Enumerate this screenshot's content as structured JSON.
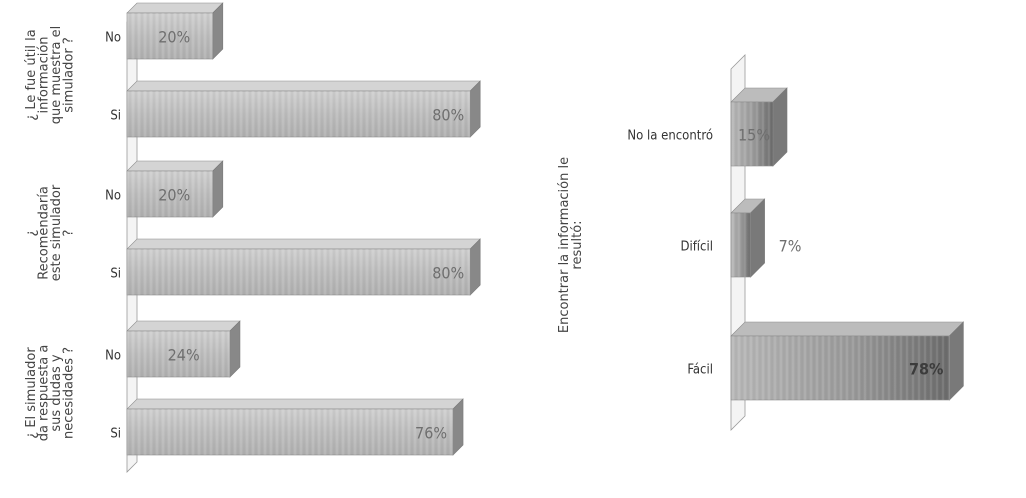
{
  "chart_data": [
    {
      "type": "bar",
      "orientation": "horizontal",
      "title": "",
      "xlabel": "",
      "ylabel": "",
      "xlim": [
        0,
        100
      ],
      "grid": false,
      "legend": "none",
      "bar_color": "#bdbdbd",
      "groups": [
        {
          "label_lines": [
            "¿ Le fue útil la",
            "información",
            "que muestra el",
            "simulador ?"
          ],
          "bars": [
            {
              "category": "No",
              "value": 20,
              "label": "20%"
            },
            {
              "category": "Si",
              "value": 80,
              "label": "80%"
            }
          ]
        },
        {
          "label_lines": [
            "¿",
            "Recomendaría",
            "este simulador",
            "?"
          ],
          "bars": [
            {
              "category": "No",
              "value": 20,
              "label": "20%"
            },
            {
              "category": "Si",
              "value": 80,
              "label": "80%"
            }
          ]
        },
        {
          "label_lines": [
            "¿ El simulador",
            "da respuesta a",
            "sus dudas y",
            "necesidades ?"
          ],
          "bars": [
            {
              "category": "No",
              "value": 24,
              "label": "24%"
            },
            {
              "category": "Si",
              "value": 76,
              "label": "76%"
            }
          ]
        }
      ]
    },
    {
      "type": "bar",
      "orientation": "horizontal",
      "title": "",
      "xlabel": "",
      "ylabel_lines": [
        "Encontrar la información le",
        "resultó:"
      ],
      "xlim": [
        0,
        100
      ],
      "grid": false,
      "legend": "none",
      "bar_color": "#a8a8a8",
      "categories": [
        "No la encontró",
        "Difícil",
        "Fácil"
      ],
      "values": [
        15,
        7,
        78
      ],
      "labels": [
        "15%",
        "7%",
        "78%"
      ]
    }
  ]
}
